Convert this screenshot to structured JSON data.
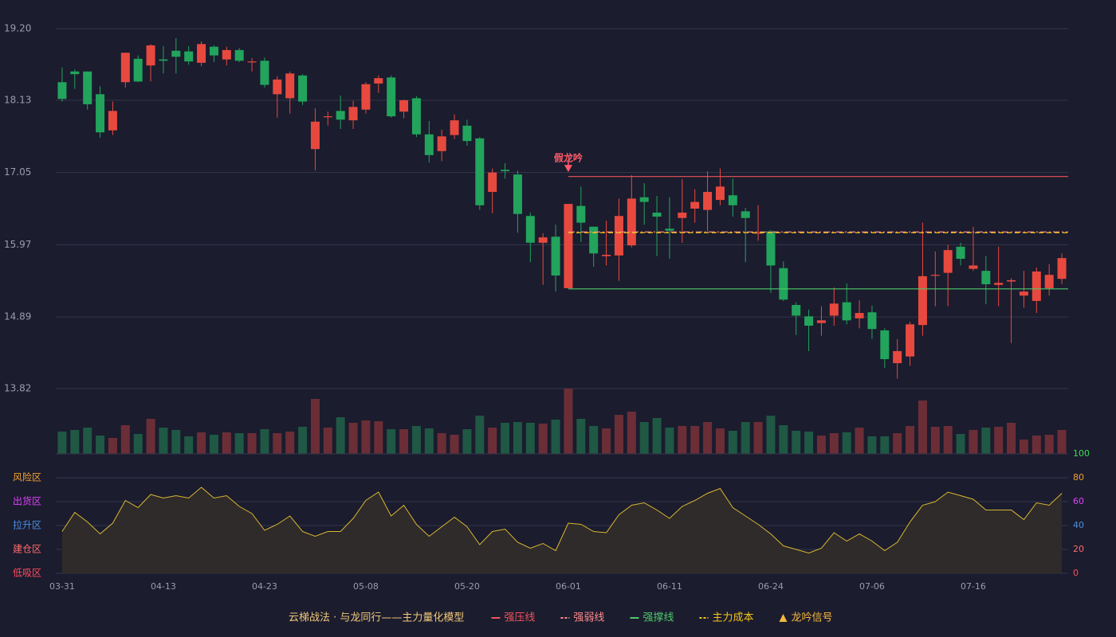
{
  "chart_data": [
    {
      "type": "candlestick",
      "categories": [
        "03-31",
        null,
        null,
        null,
        null,
        null,
        null,
        null,
        "04-13",
        null,
        null,
        null,
        null,
        null,
        null,
        null,
        "04-23",
        null,
        null,
        null,
        null,
        null,
        null,
        null,
        "05-08",
        null,
        null,
        null,
        null,
        null,
        null,
        null,
        "05-20",
        null,
        null,
        null,
        null,
        null,
        null,
        null,
        "06-01",
        null,
        null,
        null,
        null,
        null,
        null,
        null,
        "06-11",
        null,
        null,
        null,
        null,
        null,
        null,
        null,
        "06-24",
        null,
        null,
        null,
        null,
        null,
        null,
        null,
        "07-06",
        null,
        null,
        null,
        null,
        null,
        null,
        null,
        "07-16",
        null,
        null,
        null,
        null,
        null,
        null,
        null
      ],
      "open": [
        18.4,
        18.56,
        18.56,
        18.22,
        17.68,
        18.4,
        18.75,
        18.65,
        18.74,
        18.87,
        18.86,
        18.69,
        18.93,
        18.74,
        18.88,
        18.7,
        18.72,
        18.22,
        18.16,
        18.5,
        17.4,
        17.88,
        17.97,
        17.83,
        17.99,
        18.38,
        18.47,
        17.96,
        18.16,
        17.62,
        17.37,
        17.61,
        17.75,
        17.56,
        16.76,
        17.09,
        17.02,
        16.4,
        16.0,
        16.09,
        15.32,
        16.55,
        16.24,
        15.8,
        15.81,
        15.96,
        16.68,
        16.45,
        16.21,
        16.37,
        16.51,
        16.49,
        16.64,
        16.71,
        16.47,
        16.14,
        16.17,
        15.62,
        15.07,
        14.9,
        14.8,
        14.91,
        15.11,
        14.87,
        14.96,
        14.69,
        14.2,
        14.3,
        14.77,
        15.51,
        15.55,
        15.94,
        15.61,
        15.58,
        15.37,
        15.42,
        15.21,
        15.13,
        15.32,
        15.46
      ],
      "high": [
        18.62,
        18.59,
        18.56,
        18.34,
        18.11,
        18.84,
        18.8,
        18.97,
        18.94,
        19.06,
        18.94,
        19.01,
        18.95,
        18.93,
        18.91,
        18.76,
        18.77,
        18.49,
        18.56,
        18.52,
        18.01,
        17.96,
        18.2,
        18.12,
        18.4,
        18.5,
        18.5,
        18.14,
        18.19,
        17.82,
        17.69,
        17.92,
        17.84,
        17.58,
        17.11,
        17.19,
        17.08,
        16.45,
        16.14,
        16.27,
        16.58,
        16.84,
        16.24,
        16.33,
        16.66,
        17.01,
        16.89,
        16.7,
        16.68,
        16.95,
        16.8,
        17.07,
        17.11,
        16.96,
        16.52,
        16.56,
        16.19,
        15.72,
        15.11,
        15.0,
        15.05,
        15.33,
        15.39,
        15.14,
        15.06,
        14.72,
        14.56,
        14.82,
        16.3,
        15.87,
        15.97,
        16.0,
        16.24,
        15.8,
        15.94,
        15.47,
        15.58,
        15.63,
        15.68,
        15.84
      ],
      "low": [
        18.11,
        18.3,
        17.99,
        17.57,
        17.61,
        18.32,
        18.4,
        18.41,
        18.53,
        18.53,
        18.66,
        18.64,
        18.7,
        18.65,
        18.7,
        18.56,
        18.32,
        17.87,
        17.93,
        18.06,
        17.08,
        17.75,
        17.7,
        17.7,
        17.93,
        18.24,
        17.87,
        17.86,
        17.58,
        17.2,
        17.22,
        17.55,
        17.45,
        16.49,
        16.44,
        16.96,
        16.15,
        15.71,
        15.37,
        15.27,
        15.32,
        16.01,
        15.64,
        15.66,
        15.43,
        15.93,
        16.27,
        15.8,
        15.76,
        16.0,
        16.3,
        16.17,
        16.56,
        16.39,
        15.71,
        16.03,
        15.25,
        15.13,
        14.62,
        14.38,
        14.61,
        14.76,
        14.78,
        14.72,
        14.56,
        14.13,
        13.97,
        14.16,
        14.61,
        15.05,
        15.05,
        15.66,
        15.58,
        15.08,
        15.05,
        14.5,
        15.03,
        14.95,
        15.21,
        15.38
      ],
      "close": [
        18.15,
        18.52,
        18.07,
        17.65,
        17.97,
        18.84,
        18.41,
        18.95,
        18.72,
        18.78,
        18.71,
        18.97,
        18.8,
        18.88,
        18.72,
        18.71,
        18.36,
        18.44,
        18.53,
        18.11,
        17.81,
        17.89,
        17.84,
        18.03,
        18.37,
        18.46,
        17.89,
        18.13,
        17.62,
        17.31,
        17.59,
        17.83,
        17.52,
        16.56,
        17.05,
        17.07,
        16.43,
        16.0,
        16.08,
        15.51,
        16.58,
        16.3,
        15.84,
        15.82,
        16.4,
        16.66,
        16.61,
        16.39,
        16.18,
        16.45,
        16.61,
        16.76,
        16.84,
        16.56,
        16.37,
        16.15,
        15.66,
        15.15,
        14.91,
        14.76,
        14.84,
        15.09,
        14.84,
        14.95,
        14.71,
        14.26,
        14.38,
        14.78,
        15.5,
        15.52,
        15.89,
        15.76,
        15.66,
        15.38,
        15.4,
        15.44,
        15.27,
        15.57,
        15.52,
        15.77
      ],
      "volume": [
        28,
        30,
        33,
        23,
        20,
        36,
        25,
        44,
        33,
        30,
        22,
        27,
        24,
        27,
        26,
        26,
        31,
        26,
        28,
        34,
        69,
        33,
        46,
        39,
        42,
        41,
        31,
        31,
        35,
        32,
        26,
        24,
        31,
        48,
        33,
        39,
        40,
        39,
        38,
        43,
        82,
        44,
        35,
        32,
        49,
        53,
        40,
        45,
        33,
        35,
        35,
        40,
        32,
        29,
        40,
        40,
        48,
        36,
        29,
        28,
        23,
        26,
        27,
        33,
        22,
        22,
        26,
        35,
        67,
        34,
        35,
        25,
        30,
        33,
        34,
        39,
        18,
        23,
        24,
        30
      ],
      "up_color": "#e8493f",
      "down_color": "#22a45c",
      "volume_up_color": "#6b2e36",
      "volume_down_color": "#1f5844",
      "ylim": [
        13.82,
        19.2
      ],
      "yticks": [
        {
          "value": 19.2,
          "label": "19.20"
        },
        18.13,
        17.05,
        15.97,
        14.89,
        13.82
      ],
      "grid": true,
      "lines": [
        {
          "name": "强压线",
          "value": 16.99,
          "start": 40,
          "color": "#f0525a",
          "style": "solid"
        },
        {
          "name": "强弱线",
          "value": 16.16,
          "start": 40,
          "color": "#ff8a8a",
          "style": "dashdot"
        },
        {
          "name": "强撑线",
          "value": 15.31,
          "start": 40,
          "color": "#4cc96a",
          "style": "solid"
        },
        {
          "name": "主力成本",
          "value": 16.15,
          "start": 40,
          "color": "#f5c518",
          "style": "dashed"
        }
      ],
      "signals": [
        {
          "label": "假龙吟",
          "index": 40,
          "color": "#ff5a6a"
        }
      ],
      "signal_name": "龙吟信号",
      "signal_color": "#f5b83d",
      "legend_title": "云梯战法 · 与龙同行——主力量化模型",
      "legend_title_color": "#f0c878"
    },
    {
      "type": "area",
      "values": [
        35,
        51,
        43,
        33,
        42,
        61,
        55,
        66,
        63,
        65,
        63,
        72,
        63,
        65,
        56,
        50,
        36,
        41,
        48,
        35,
        31,
        35,
        35,
        46,
        61,
        68,
        48,
        57,
        41,
        31,
        39,
        47,
        39,
        24,
        35,
        37,
        26,
        21,
        25,
        19,
        42,
        41,
        35,
        34,
        49,
        57,
        59,
        53,
        46,
        56,
        61,
        67,
        71,
        55,
        48,
        41,
        33,
        23,
        20,
        17,
        21,
        34,
        27,
        33,
        27,
        19,
        26,
        43,
        57,
        60,
        68,
        65,
        62,
        53,
        53,
        53,
        45,
        59,
        57,
        67
      ],
      "color": "#d9b630",
      "fill": "#2f2b2a",
      "ylim": [
        0,
        100
      ],
      "yticks": [
        0,
        20,
        40,
        60,
        80,
        100
      ],
      "ytick_colors": [
        "#ff4d5e",
        "#ff6b6b",
        "#4a90e2",
        "#e040fb",
        "#f0a030",
        "#3ddc5a"
      ],
      "zones": [
        {
          "label": "低吸区",
          "value": 0,
          "color": "#ff4d5e"
        },
        {
          "label": "建仓区",
          "value": 20,
          "color": "#ff6b6b"
        },
        {
          "label": "拉升区",
          "value": 40,
          "color": "#4a90e2"
        },
        {
          "label": "出货区",
          "value": 60,
          "color": "#e040fb"
        },
        {
          "label": "风险区",
          "value": 80,
          "color": "#f0a030"
        }
      ]
    }
  ]
}
